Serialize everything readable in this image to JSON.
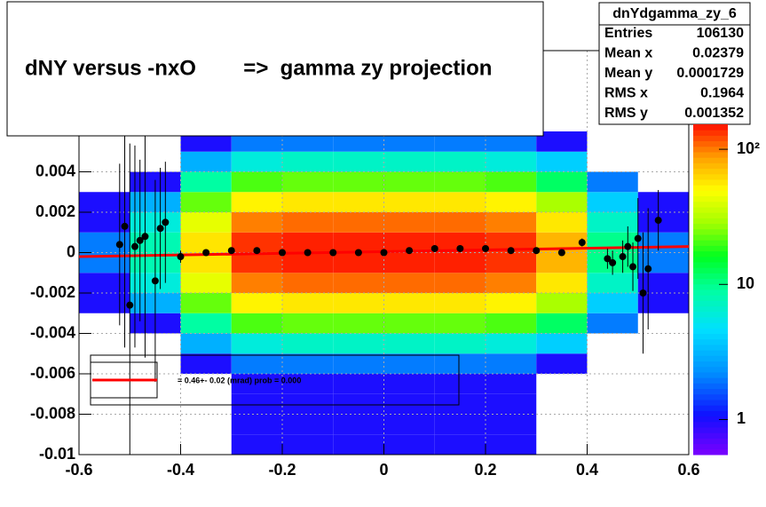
{
  "chart_data": {
    "type": "heatmap",
    "title": "dNY versus -nxO        =>  gamma zy projection",
    "xlim": [
      -0.6,
      0.6
    ],
    "ylim": [
      -0.01,
      0.01
    ],
    "xticks": [
      -0.6,
      -0.4,
      -0.2,
      0,
      0.2,
      0.4,
      0.6
    ],
    "yticks": [
      -0.01,
      -0.008,
      -0.006,
      -0.004,
      -0.002,
      0,
      0.002,
      0.004
    ],
    "grid": true,
    "log_z": true,
    "zlim": [
      0.55,
      153
    ],
    "zticks": [
      1,
      10,
      {
        "value": 100,
        "label": "10²"
      }
    ],
    "xbins": [
      -0.6,
      -0.5,
      -0.4,
      -0.3,
      -0.2,
      -0.1,
      0,
      0.1,
      0.2,
      0.3,
      0.4,
      0.5,
      0.6
    ],
    "ybins": [
      -0.01,
      -0.009,
      -0.008,
      -0.007,
      -0.006,
      -0.005,
      -0.004,
      -0.003,
      -0.002,
      -0.001,
      0,
      0.001,
      0.002,
      0.003,
      0.004,
      0.005,
      0.006,
      0.007,
      0.008,
      0.009,
      0.01
    ],
    "counts": [
      [
        0,
        0,
        0,
        1,
        1,
        1,
        1,
        1,
        1,
        0,
        0,
        0
      ],
      [
        0,
        0,
        0,
        1,
        1,
        1,
        1,
        1,
        1,
        0,
        0,
        0
      ],
      [
        0,
        0,
        0,
        1,
        1,
        1,
        1,
        1,
        1,
        0,
        0,
        0
      ],
      [
        0,
        0,
        0,
        1,
        1,
        1,
        1,
        1,
        1,
        0,
        0,
        0
      ],
      [
        0,
        0,
        1,
        2,
        2,
        2,
        2,
        2,
        2,
        1,
        0,
        0
      ],
      [
        0,
        0,
        3,
        6,
        7,
        7,
        7,
        7,
        6,
        4,
        0,
        0
      ],
      [
        0,
        1,
        9,
        21,
        23,
        23,
        23,
        23,
        21,
        12,
        2,
        0
      ],
      [
        1,
        3,
        23,
        53,
        57,
        57,
        57,
        57,
        53,
        30,
        4,
        1
      ],
      [
        1,
        6,
        43,
        99,
        107,
        107,
        107,
        107,
        99,
        57,
        7,
        1
      ],
      [
        2,
        8,
        58,
        134,
        144,
        144,
        144,
        144,
        134,
        77,
        10,
        2
      ],
      [
        2,
        8,
        58,
        134,
        144,
        144,
        144,
        144,
        134,
        77,
        10,
        2
      ],
      [
        1,
        6,
        43,
        99,
        107,
        107,
        107,
        107,
        99,
        57,
        7,
        1
      ],
      [
        1,
        3,
        23,
        53,
        57,
        57,
        57,
        57,
        53,
        30,
        4,
        1
      ],
      [
        0,
        1,
        9,
        21,
        23,
        23,
        23,
        23,
        21,
        12,
        2,
        0
      ],
      [
        0,
        0,
        3,
        6,
        7,
        7,
        7,
        7,
        6,
        4,
        0,
        0
      ],
      [
        0,
        0,
        1,
        2,
        2,
        2,
        2,
        2,
        2,
        1,
        0,
        0
      ],
      [
        0,
        0,
        0,
        1,
        1,
        1,
        1,
        1,
        1,
        0,
        0,
        0
      ],
      [
        0,
        0,
        0,
        1,
        1,
        1,
        1,
        1,
        1,
        0,
        0,
        0
      ],
      [
        0,
        0,
        0,
        1,
        1,
        1,
        1,
        1,
        1,
        0,
        0,
        0
      ],
      [
        0,
        0,
        0,
        1,
        1,
        1,
        1,
        1,
        1,
        0,
        0,
        0
      ]
    ],
    "profile": {
      "color": "#000000",
      "x": [
        -0.52,
        -0.51,
        -0.5,
        -0.49,
        -0.48,
        -0.47,
        -0.45,
        -0.44,
        -0.43,
        -0.4,
        -0.35,
        -0.3,
        -0.25,
        -0.2,
        -0.15,
        -0.1,
        -0.05,
        0,
        0.05,
        0.1,
        0.15,
        0.2,
        0.25,
        0.3,
        0.35,
        0.39,
        0.44,
        0.45,
        0.47,
        0.48,
        0.49,
        0.5,
        0.51,
        0.52,
        0.54
      ],
      "values": [
        0.0004,
        0.0013,
        -0.0026,
        0.0003,
        0.0006,
        0.0008,
        -0.0014,
        0.0012,
        0.0015,
        -0.0002,
        0,
        0.0001,
        0.0001,
        0,
        0,
        0,
        0,
        0,
        0.0001,
        0.0002,
        0.0002,
        0.0002,
        0.0001,
        0.0001,
        0,
        0.0005,
        -0.0003,
        -0.0005,
        -0.0002,
        0.0003,
        -0.0007,
        0.0007,
        -0.002,
        -0.0008,
        0.0016
      ],
      "errors": [
        0.004,
        0.006,
        0.008,
        0.005,
        0.004,
        0.006,
        0.005,
        0.003,
        0.003,
        0.0003,
        0.0001,
        0.0001,
        0.0001,
        0.0001,
        0.0001,
        0.0001,
        0.0001,
        0.0001,
        0.0001,
        0.0001,
        0.0001,
        0.0001,
        0.0001,
        0.0001,
        0.0001,
        0.0002,
        0.0005,
        0.0006,
        0.0008,
        0.001,
        0.0012,
        0.002,
        0.003,
        0.003,
        0.0015
      ]
    },
    "fit": {
      "color": "#ff0000",
      "x": [
        -0.6,
        0.6
      ],
      "y": [
        -0.0002,
        0.0003
      ]
    },
    "fit_label": "= 0.46+- 0.02 (mrad) prob = 0.000",
    "stats": {
      "title": "dnYdgamma_zy_6",
      "rows": [
        {
          "name": "Entries",
          "value": 106130
        },
        {
          "name": "Mean x",
          "value": 0.02379
        },
        {
          "name": "Mean y",
          "value": 0.0001729
        },
        {
          "name": "RMS x",
          "value": 0.1964
        },
        {
          "name": "RMS y",
          "value": 0.001352
        }
      ]
    }
  }
}
